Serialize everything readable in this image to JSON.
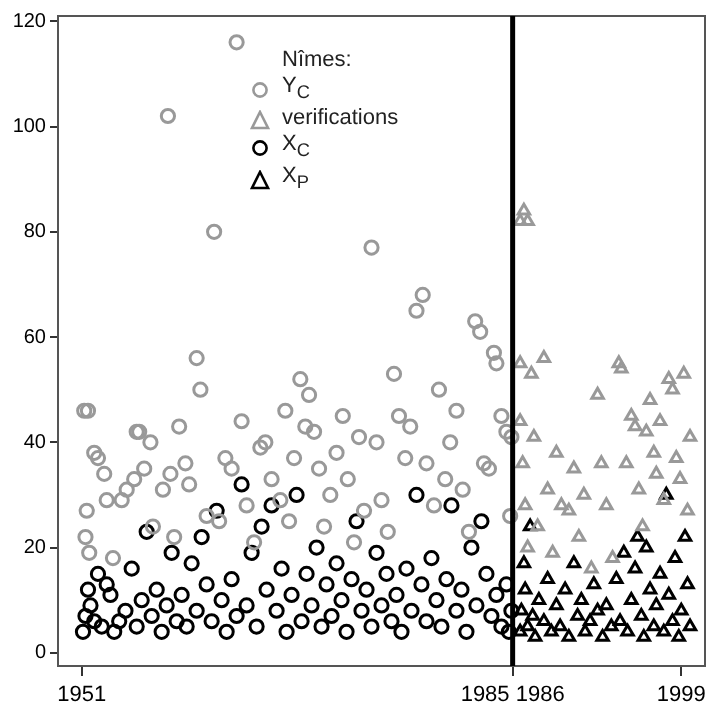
{
  "chart_data": {
    "type": "scatter",
    "legend_title": "Nîmes:",
    "legend": "top left",
    "xlim": [
      1949.1,
      2000.9
    ],
    "ylim": [
      -2.5,
      121
    ],
    "xticks": [
      1951,
      {
        "value": 1985.5,
        "label": "1985 1986"
      },
      1999
    ],
    "yticks": [
      0,
      20,
      40,
      60,
      80,
      100,
      120
    ],
    "ref_lines": [
      {
        "axis": "x",
        "value": 1985.5,
        "color": "#000000"
      }
    ],
    "series": [
      {
        "name": "Y$_{C}$",
        "color": "#999999",
        "marker": "circle",
        "x": [
          1951.2,
          1951.5,
          1951.4,
          1951.3,
          1951.6,
          1952.0,
          1952.3,
          1952.8,
          1953.0,
          1953.5,
          1954.2,
          1954.6,
          1955.2,
          1955.4,
          1955.6,
          1956.0,
          1956.5,
          1956.7,
          1957.5,
          1957.9,
          1958.1,
          1958.4,
          1958.8,
          1959.3,
          1959.6,
          1960.2,
          1960.5,
          1961.0,
          1961.6,
          1962.0,
          1962.5,
          1963.0,
          1963.4,
          1963.8,
          1964.2,
          1964.8,
          1965.3,
          1965.7,
          1966.2,
          1966.9,
          1967.3,
          1967.6,
          1968.0,
          1968.5,
          1968.9,
          1969.2,
          1969.6,
          1970.0,
          1970.4,
          1970.9,
          1971.4,
          1971.9,
          1972.3,
          1972.8,
          1973.2,
          1973.6,
          1974.2,
          1974.6,
          1975.0,
          1975.5,
          1976.0,
          1976.4,
          1976.9,
          1977.3,
          1977.8,
          1978.3,
          1978.6,
          1979.2,
          1979.6,
          1980.1,
          1980.5,
          1981.0,
          1981.5,
          1982.0,
          1982.5,
          1982.9,
          1983.2,
          1983.6,
          1984.0,
          1984.2,
          1984.6,
          1985.0,
          1985.4,
          1985.3
        ],
        "values": [
          46,
          46,
          27,
          22,
          19,
          38,
          37,
          34,
          29,
          18,
          29,
          31,
          33,
          42,
          42,
          35,
          40,
          24,
          31,
          102,
          34,
          22,
          43,
          36,
          32,
          56,
          50,
          26,
          80,
          25,
          37,
          35,
          116,
          44,
          28,
          21,
          39,
          40,
          33,
          29,
          46,
          25,
          37,
          52,
          43,
          49,
          42,
          35,
          24,
          30,
          38,
          45,
          33,
          21,
          41,
          27,
          77,
          40,
          29,
          23,
          53,
          45,
          37,
          43,
          65,
          68,
          36,
          28,
          50,
          33,
          40,
          46,
          31,
          23,
          63,
          61,
          36,
          35,
          57,
          55,
          45,
          42,
          41,
          26
        ]
      },
      {
        "name": "verifications",
        "color": "#999999",
        "marker": "triangle",
        "x": [
          1986.1,
          1986.7,
          1986.4,
          1986.1,
          1986.1,
          1986.3,
          1986.5,
          1986.7,
          1987.0,
          1987.2,
          1987.5,
          1988.0,
          1988.3,
          1988.7,
          1989.0,
          1989.4,
          1990.0,
          1990.4,
          1990.8,
          1991.2,
          1991.8,
          1992.3,
          1992.6,
          1993.0,
          1993.5,
          1994.0,
          1994.2,
          1994.6,
          1995.0,
          1995.3,
          1995.6,
          1995.9,
          1996.2,
          1996.5,
          1996.8,
          1997.0,
          1997.3,
          1997.6,
          1998.0,
          1998.3,
          1998.6,
          1998.9,
          1999.2,
          1999.5,
          1999.7
        ],
        "values": [
          82,
          82,
          84,
          55,
          44,
          36,
          28,
          20,
          53,
          41,
          24,
          56,
          31,
          19,
          38,
          28,
          27,
          35,
          22,
          30,
          16,
          49,
          36,
          28,
          18,
          55,
          54,
          36,
          45,
          43,
          31,
          24,
          42,
          48,
          38,
          34,
          44,
          29,
          52,
          50,
          37,
          33,
          53,
          27,
          41
        ]
      },
      {
        "name": "X$_{C}$",
        "color": "#000000",
        "marker": "circle",
        "x": [
          1951.1,
          1951.3,
          1951.5,
          1951.7,
          1952.0,
          1952.3,
          1952.6,
          1953.0,
          1953.3,
          1953.6,
          1954.0,
          1954.5,
          1955.0,
          1955.4,
          1955.8,
          1956.2,
          1956.6,
          1957.0,
          1957.4,
          1957.8,
          1958.2,
          1958.6,
          1959.0,
          1959.4,
          1959.8,
          1960.2,
          1960.6,
          1961.0,
          1961.4,
          1961.8,
          1962.2,
          1962.6,
          1963.0,
          1963.4,
          1963.8,
          1964.2,
          1964.6,
          1965.0,
          1965.4,
          1965.8,
          1966.2,
          1966.6,
          1967.0,
          1967.4,
          1967.8,
          1968.2,
          1968.6,
          1969.0,
          1969.4,
          1969.8,
          1970.2,
          1970.6,
          1971.0,
          1971.4,
          1971.8,
          1972.2,
          1972.6,
          1973.0,
          1973.4,
          1973.8,
          1974.2,
          1974.6,
          1975.0,
          1975.4,
          1975.8,
          1976.2,
          1976.6,
          1977.0,
          1977.4,
          1977.8,
          1978.2,
          1978.6,
          1979.0,
          1979.4,
          1979.8,
          1980.2,
          1980.6,
          1981.0,
          1981.4,
          1981.8,
          1982.2,
          1982.6,
          1983.0,
          1983.4,
          1983.8,
          1984.2,
          1984.6,
          1985.0,
          1985.4,
          1985.2
        ],
        "values": [
          4,
          7,
          12,
          9,
          6,
          15,
          5,
          13,
          11,
          4,
          6,
          8,
          16,
          5,
          10,
          23,
          7,
          12,
          4,
          9,
          19,
          6,
          11,
          5,
          17,
          8,
          22,
          13,
          6,
          27,
          10,
          4,
          14,
          7,
          32,
          9,
          19,
          5,
          24,
          12,
          28,
          8,
          16,
          4,
          11,
          30,
          6,
          15,
          9,
          20,
          5,
          13,
          7,
          17,
          10,
          4,
          14,
          25,
          8,
          12,
          5,
          19,
          9,
          15,
          6,
          11,
          4,
          16,
          8,
          30,
          13,
          6,
          18,
          10,
          5,
          14,
          28,
          8,
          12,
          4,
          20,
          9,
          25,
          15,
          7,
          11,
          5,
          13,
          8,
          4
        ]
      },
      {
        "name": "X$_{P}$",
        "color": "#000000",
        "marker": "triangle",
        "x": [
          1986.1,
          1986.2,
          1986.4,
          1986.5,
          1986.7,
          1986.9,
          1987.1,
          1987.3,
          1987.6,
          1988.0,
          1988.3,
          1988.6,
          1989.0,
          1989.3,
          1989.7,
          1990.0,
          1990.4,
          1990.7,
          1991.0,
          1991.3,
          1991.7,
          1992.0,
          1992.3,
          1992.7,
          1993.0,
          1993.4,
          1993.8,
          1994.1,
          1994.4,
          1994.7,
          1995.0,
          1995.3,
          1995.5,
          1995.8,
          1996.0,
          1996.2,
          1996.5,
          1996.8,
          1997.0,
          1997.3,
          1997.6,
          1997.8,
          1998.0,
          1998.3,
          1998.5,
          1998.8,
          1999.0,
          1999.3,
          1999.5,
          1999.7
        ],
        "values": [
          4,
          8,
          17,
          12,
          5,
          24,
          7,
          3,
          10,
          6,
          14,
          4,
          9,
          5,
          12,
          3,
          17,
          7,
          10,
          4,
          6,
          13,
          8,
          3,
          9,
          5,
          14,
          6,
          19,
          4,
          10,
          16,
          22,
          7,
          3,
          20,
          12,
          5,
          9,
          15,
          4,
          30,
          11,
          6,
          18,
          3,
          8,
          22,
          13,
          5
        ]
      }
    ]
  }
}
